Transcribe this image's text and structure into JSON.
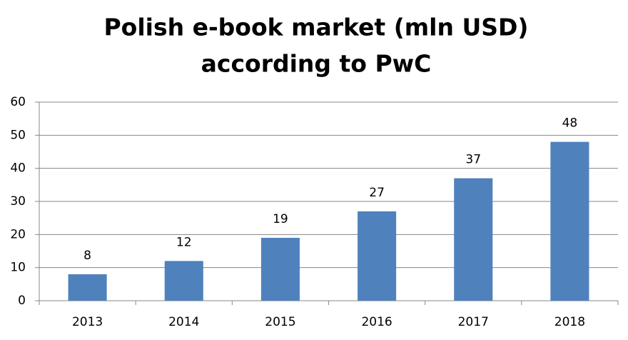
{
  "chart_data": {
    "type": "bar",
    "title": [
      "Polish e-book market (mln USD)",
      "according to PwC"
    ],
    "categories": [
      "2013",
      "2014",
      "2015",
      "2016",
      "2017",
      "2018"
    ],
    "values": [
      8,
      12,
      19,
      27,
      37,
      48
    ],
    "color": "#4f81bd",
    "ylim": [
      0,
      60
    ],
    "yticks": [
      0,
      10,
      20,
      30,
      40,
      50,
      60
    ],
    "grid": true
  }
}
